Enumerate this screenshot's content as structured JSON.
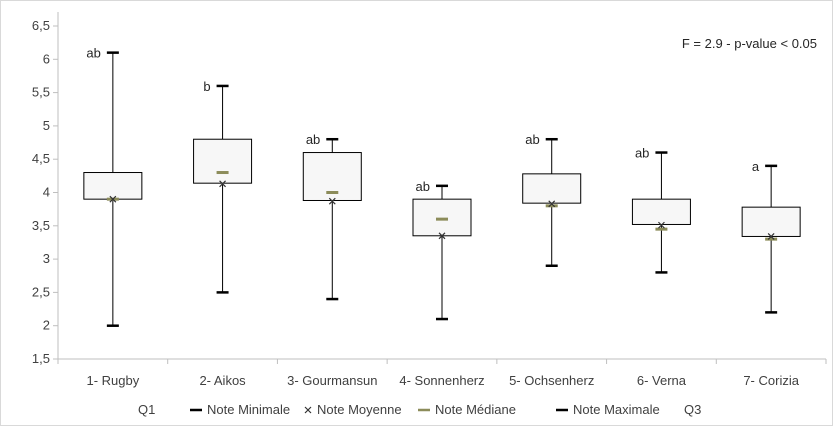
{
  "chart_data": {
    "type": "box",
    "categories": [
      "1- Rugby",
      "2- Aikos",
      "3- Gourmansun",
      "4- Sonnenherz",
      "5- Ochsenherz",
      "6- Verna",
      "7- Corizia"
    ],
    "series": [
      {
        "name": "Q1",
        "values": [
          3.9,
          4.14,
          3.88,
          3.35,
          3.84,
          3.52,
          3.34
        ]
      },
      {
        "name": "Q3",
        "values": [
          4.3,
          4.8,
          4.6,
          3.9,
          4.28,
          3.9,
          3.78
        ]
      },
      {
        "name": "Note Minimale",
        "values": [
          2.0,
          2.5,
          2.4,
          2.1,
          2.9,
          2.8,
          2.2
        ]
      },
      {
        "name": "Note Moyenne",
        "values": [
          3.9,
          4.13,
          3.87,
          3.35,
          3.83,
          3.51,
          3.34
        ]
      },
      {
        "name": "Note Médiane",
        "values": [
          3.9,
          4.3,
          4.0,
          3.6,
          3.8,
          3.45,
          3.3
        ]
      },
      {
        "name": "Note Maximale",
        "values": [
          6.1,
          5.6,
          4.8,
          4.1,
          4.8,
          4.6,
          4.4
        ]
      }
    ],
    "group_letters": [
      "ab",
      "b",
      "ab",
      "ab",
      "ab",
      "ab",
      "a"
    ],
    "annotation": "F = 2.9 - p-value < 0.05",
    "ylim": [
      1.5,
      6.5
    ],
    "yticks": [
      "1,5",
      "2",
      "2,5",
      "3",
      "3,5",
      "4",
      "4,5",
      "5",
      "5,5",
      "6",
      "6,5"
    ],
    "legend": {
      "position": "bottom",
      "items": [
        {
          "label": "Q1",
          "marker": "none"
        },
        {
          "label": "Note Minimale",
          "marker": "dash"
        },
        {
          "label": "Note Moyenne",
          "marker": "x"
        },
        {
          "label": "Note Médiane",
          "marker": "dash-olive"
        },
        {
          "label": "Note Maximale",
          "marker": "dash"
        },
        {
          "label": "Q3",
          "marker": "none"
        }
      ]
    },
    "colors": {
      "box_fill": "#f7f7f7",
      "median": "#8c8c5a",
      "line": "#000000",
      "grid": "#d9d9d9"
    },
    "grid": false
  }
}
